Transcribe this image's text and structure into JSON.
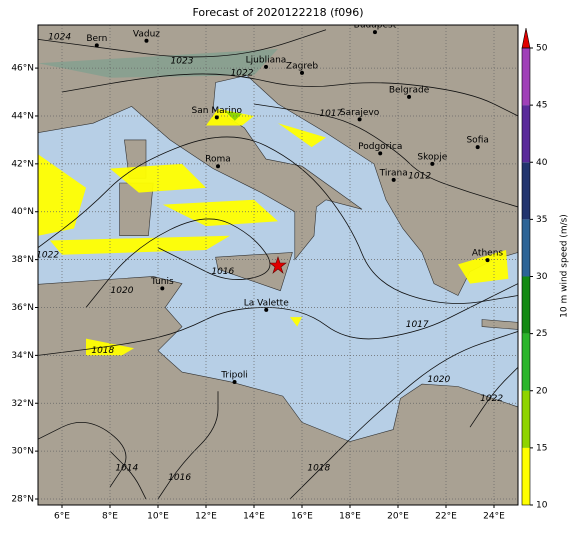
{
  "title": "Forecast of 2020122218 (f096)",
  "map": {
    "lonlim": [
      5,
      25
    ],
    "latlim": [
      27.75,
      47.8
    ],
    "lon_ticks": [
      {
        "value": 6,
        "label": "6°E"
      },
      {
        "value": 8,
        "label": "8°E"
      },
      {
        "value": 10,
        "label": "10°E"
      },
      {
        "value": 12,
        "label": "12°E"
      },
      {
        "value": 14,
        "label": "14°E"
      },
      {
        "value": 16,
        "label": "16°E"
      },
      {
        "value": 18,
        "label": "18°E"
      },
      {
        "value": 20,
        "label": "20°E"
      },
      {
        "value": 22,
        "label": "22°E"
      },
      {
        "value": 24,
        "label": "24°E"
      }
    ],
    "lat_ticks": [
      {
        "value": 28,
        "label": "28°N"
      },
      {
        "value": 30,
        "label": "30°N"
      },
      {
        "value": 32,
        "label": "32°N"
      },
      {
        "value": 34,
        "label": "34°N"
      },
      {
        "value": 36,
        "label": "36°N"
      },
      {
        "value": 38,
        "label": "38°N"
      },
      {
        "value": 40,
        "label": "40°N"
      },
      {
        "value": 42,
        "label": "42°N"
      },
      {
        "value": 44,
        "label": "44°N"
      },
      {
        "value": 46,
        "label": "46°N"
      }
    ],
    "grid": true,
    "cities": [
      {
        "name": "Bern",
        "lon": 7.45,
        "lat": 46.95
      },
      {
        "name": "Vaduz",
        "lon": 9.52,
        "lat": 47.14
      },
      {
        "name": "Budapest",
        "lon": 19.04,
        "lat": 47.5
      },
      {
        "name": "Ljubliana",
        "lon": 14.5,
        "lat": 46.05
      },
      {
        "name": "Zagreb",
        "lon": 16.0,
        "lat": 45.8
      },
      {
        "name": "Belgrade",
        "lon": 20.46,
        "lat": 44.8
      },
      {
        "name": "San Marino",
        "lon": 12.45,
        "lat": 43.94
      },
      {
        "name": "Sarajevo",
        "lon": 18.4,
        "lat": 43.86
      },
      {
        "name": "Roma",
        "lon": 12.5,
        "lat": 41.9
      },
      {
        "name": "Podgorica",
        "lon": 19.26,
        "lat": 42.44
      },
      {
        "name": "Skopje",
        "lon": 21.43,
        "lat": 42.0
      },
      {
        "name": "Sofia",
        "lon": 23.32,
        "lat": 42.7
      },
      {
        "name": "Tirana",
        "lon": 19.82,
        "lat": 41.33
      },
      {
        "name": "Athens",
        "lon": 23.73,
        "lat": 37.98
      },
      {
        "name": "Tunis",
        "lon": 10.18,
        "lat": 36.8
      },
      {
        "name": "La Valette",
        "lon": 14.51,
        "lat": 35.9
      },
      {
        "name": "Tripoli",
        "lon": 13.19,
        "lat": 32.89
      }
    ],
    "isobar_labels": [
      {
        "text": "1024",
        "lon": 5.9,
        "lat": 47.3
      },
      {
        "text": "1023",
        "lon": 11.0,
        "lat": 46.3
      },
      {
        "text": "1022",
        "lon": 13.5,
        "lat": 45.8
      },
      {
        "text": "1017",
        "lon": 17.2,
        "lat": 44.1
      },
      {
        "text": "1012",
        "lon": 20.9,
        "lat": 41.5
      },
      {
        "text": "1022",
        "lon": 5.4,
        "lat": 38.2
      },
      {
        "text": "1016",
        "lon": 12.7,
        "lat": 37.5
      },
      {
        "text": "1020",
        "lon": 8.5,
        "lat": 36.7
      },
      {
        "text": "1018",
        "lon": 7.7,
        "lat": 34.2
      },
      {
        "text": "1017",
        "lon": 20.8,
        "lat": 35.3
      },
      {
        "text": "1020",
        "lon": 21.7,
        "lat": 33.0
      },
      {
        "text": "1022",
        "lon": 23.9,
        "lat": 32.2
      },
      {
        "text": "1016",
        "lon": 10.9,
        "lat": 28.9
      },
      {
        "text": "1014",
        "lon": 8.7,
        "lat": 29.3
      },
      {
        "text": "1018",
        "lon": 16.7,
        "lat": 29.3
      }
    ]
  },
  "colorbar": {
    "label": "10 m wind speed (m/s)",
    "lim": [
      10,
      50
    ],
    "ticks": [
      10,
      15,
      20,
      25,
      30,
      35,
      40,
      45,
      50
    ],
    "colors": [
      "#ffff00",
      "#8fd400",
      "#2bb52b",
      "#138a13",
      "#2c6496",
      "#22346e",
      "#5a2a9a",
      "#a040b8"
    ],
    "extend_color": "#e00000"
  }
}
